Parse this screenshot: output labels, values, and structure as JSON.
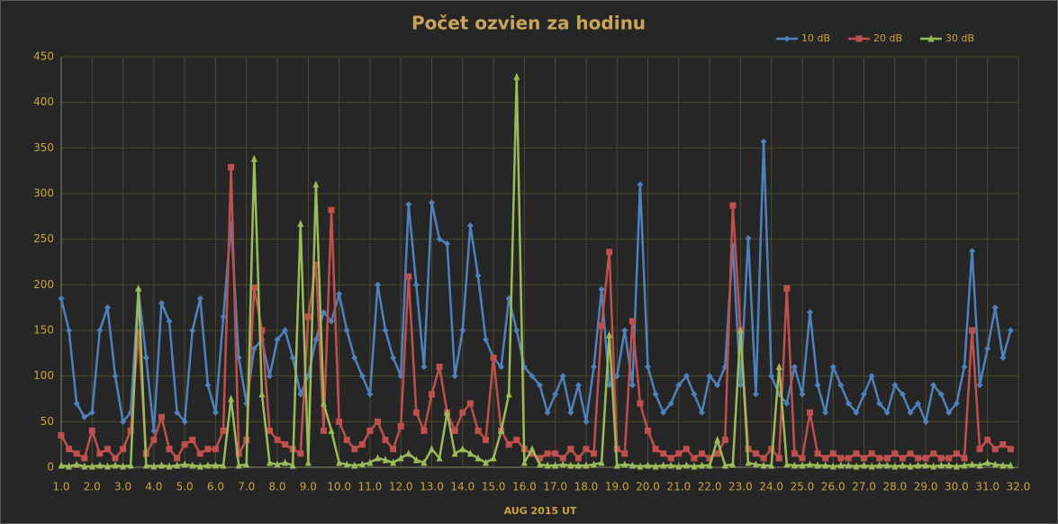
{
  "chart_data": {
    "type": "line",
    "title": "Počet ozvien za hodinu",
    "x_label": "AUG 2015 UT",
    "x": [
      1,
      1.25,
      1.5,
      1.75,
      2,
      2.25,
      2.5,
      2.75,
      3,
      3.25,
      3.5,
      3.75,
      4,
      4.25,
      4.5,
      4.75,
      5,
      5.25,
      5.5,
      5.75,
      6,
      6.25,
      6.5,
      6.75,
      7,
      7.25,
      7.5,
      7.75,
      8,
      8.25,
      8.5,
      8.75,
      9,
      9.25,
      9.5,
      9.75,
      10,
      10.25,
      10.5,
      10.75,
      11,
      11.25,
      11.5,
      11.75,
      12,
      12.25,
      12.5,
      12.75,
      13,
      13.25,
      13.5,
      13.75,
      14,
      14.25,
      14.5,
      14.75,
      15,
      15.25,
      15.5,
      15.75,
      16,
      16.25,
      16.5,
      16.75,
      17,
      17.25,
      17.5,
      17.75,
      18,
      18.25,
      18.5,
      18.75,
      19,
      19.25,
      19.5,
      19.75,
      20,
      20.25,
      20.5,
      20.75,
      21,
      21.25,
      21.5,
      21.75,
      22,
      22.25,
      22.5,
      22.75,
      23,
      23.25,
      23.5,
      23.75,
      24,
      24.25,
      24.5,
      24.75,
      25,
      25.25,
      25.5,
      25.75,
      26,
      26.25,
      26.5,
      26.75,
      27,
      27.25,
      27.5,
      27.75,
      28,
      28.25,
      28.5,
      28.75,
      29,
      29.25,
      29.5,
      29.75,
      30,
      30.25,
      30.5,
      30.75,
      31,
      31.25,
      31.5,
      31.75
    ],
    "series": [
      {
        "name": "10 dB",
        "color": "#4f81bd",
        "marker": "diamond",
        "values": [
          185,
          150,
          70,
          55,
          60,
          150,
          175,
          100,
          50,
          60,
          195,
          120,
          40,
          180,
          160,
          60,
          50,
          150,
          185,
          90,
          60,
          165,
          267,
          120,
          70,
          130,
          140,
          100,
          140,
          150,
          120,
          80,
          100,
          140,
          170,
          160,
          190,
          150,
          120,
          100,
          80,
          200,
          150,
          120,
          100,
          288,
          200,
          110,
          290,
          250,
          245,
          100,
          150,
          265,
          210,
          140,
          120,
          110,
          185,
          150,
          110,
          100,
          90,
          60,
          80,
          100,
          60,
          90,
          50,
          110,
          195,
          90,
          100,
          150,
          90,
          310,
          110,
          80,
          60,
          70,
          90,
          100,
          80,
          60,
          100,
          90,
          110,
          243,
          90,
          251,
          80,
          357,
          100,
          80,
          70,
          110,
          80,
          170,
          90,
          60,
          110,
          90,
          70,
          60,
          80,
          100,
          70,
          60,
          90,
          80,
          60,
          70,
          50,
          90,
          80,
          60,
          70,
          110,
          237,
          90,
          130,
          175,
          120,
          150
        ]
      },
      {
        "name": "20 dB",
        "color": "#c0504d",
        "marker": "square",
        "values": [
          35,
          20,
          15,
          10,
          40,
          15,
          20,
          10,
          20,
          40,
          148,
          15,
          30,
          55,
          20,
          10,
          25,
          30,
          15,
          20,
          20,
          40,
          329,
          15,
          30,
          197,
          150,
          40,
          30,
          25,
          20,
          15,
          165,
          222,
          40,
          282,
          50,
          30,
          20,
          25,
          40,
          50,
          30,
          20,
          45,
          209,
          60,
          40,
          80,
          110,
          60,
          40,
          60,
          70,
          40,
          30,
          120,
          40,
          25,
          30,
          20,
          15,
          10,
          15,
          15,
          10,
          20,
          10,
          20,
          15,
          155,
          236,
          20,
          15,
          160,
          70,
          40,
          20,
          15,
          10,
          15,
          20,
          10,
          15,
          10,
          15,
          30,
          287,
          150,
          20,
          15,
          10,
          20,
          10,
          196,
          15,
          10,
          60,
          15,
          10,
          15,
          10,
          10,
          15,
          10,
          15,
          10,
          10,
          15,
          10,
          15,
          10,
          10,
          15,
          10,
          10,
          15,
          10,
          150,
          20,
          30,
          20,
          25,
          20
        ]
      },
      {
        "name": "30 dB",
        "color": "#9bbb59",
        "marker": "triangle",
        "values": [
          2,
          1,
          3,
          1,
          1,
          2,
          1,
          2,
          1,
          2,
          196,
          2,
          1,
          2,
          1,
          2,
          3,
          2,
          1,
          2,
          2,
          2,
          75,
          2,
          3,
          338,
          80,
          5,
          3,
          5,
          2,
          267,
          5,
          310,
          70,
          40,
          5,
          3,
          2,
          3,
          5,
          10,
          8,
          5,
          10,
          15,
          8,
          5,
          20,
          10,
          60,
          15,
          20,
          15,
          10,
          5,
          10,
          40,
          80,
          428,
          5,
          20,
          3,
          2,
          2,
          3,
          2,
          2,
          2,
          3,
          5,
          145,
          2,
          3,
          2,
          1,
          2,
          1,
          2,
          2,
          1,
          2,
          1,
          2,
          2,
          30,
          2,
          3,
          150,
          5,
          3,
          2,
          2,
          110,
          3,
          2,
          2,
          3,
          2,
          2,
          1,
          2,
          2,
          1,
          2,
          1,
          2,
          2,
          1,
          2,
          1,
          2,
          2,
          1,
          2,
          2,
          1,
          2,
          3,
          2,
          5,
          3,
          2,
          2
        ]
      }
    ],
    "xlim": [
      1,
      32
    ],
    "xticks": [
      {
        "value": 1,
        "label": "1.0"
      },
      {
        "value": 2,
        "label": "2.0"
      },
      {
        "value": 3,
        "label": "3.0"
      },
      {
        "value": 4,
        "label": "4.0"
      },
      {
        "value": 5,
        "label": "5.0"
      },
      {
        "value": 6,
        "label": "6.0"
      },
      {
        "value": 7,
        "label": "7.0"
      },
      {
        "value": 8,
        "label": "8.0"
      },
      {
        "value": 9,
        "label": "9.0"
      },
      {
        "value": 10,
        "label": "10.0"
      },
      {
        "value": 11,
        "label": "11.0"
      },
      {
        "value": 12,
        "label": "12.0"
      },
      {
        "value": 13,
        "label": "13.0"
      },
      {
        "value": 14,
        "label": "14.0"
      },
      {
        "value": 15,
        "label": "15.0"
      },
      {
        "value": 16,
        "label": "16.0"
      },
      {
        "value": 17,
        "label": "17.0"
      },
      {
        "value": 18,
        "label": "18.0"
      },
      {
        "value": 19,
        "label": "19.0"
      },
      {
        "value": 20,
        "label": "20.0"
      },
      {
        "value": 21,
        "label": "21.0"
      },
      {
        "value": 22,
        "label": "22.0"
      },
      {
        "value": 23,
        "label": "23.0"
      },
      {
        "value": 24,
        "label": "24.0"
      },
      {
        "value": 25,
        "label": "25.0"
      },
      {
        "value": 26,
        "label": "26.0"
      },
      {
        "value": 27,
        "label": "27.0"
      },
      {
        "value": 28,
        "label": "28.0"
      },
      {
        "value": 29,
        "label": "29.0"
      },
      {
        "value": 30,
        "label": "30.0"
      },
      {
        "value": 31,
        "label": "31.0"
      },
      {
        "value": 32,
        "label": "32.0"
      }
    ],
    "ylim": [
      0,
      450
    ],
    "yticks": [
      0,
      50,
      100,
      150,
      200,
      250,
      300,
      350,
      400,
      450
    ],
    "grid": true,
    "legend": "top-right"
  }
}
